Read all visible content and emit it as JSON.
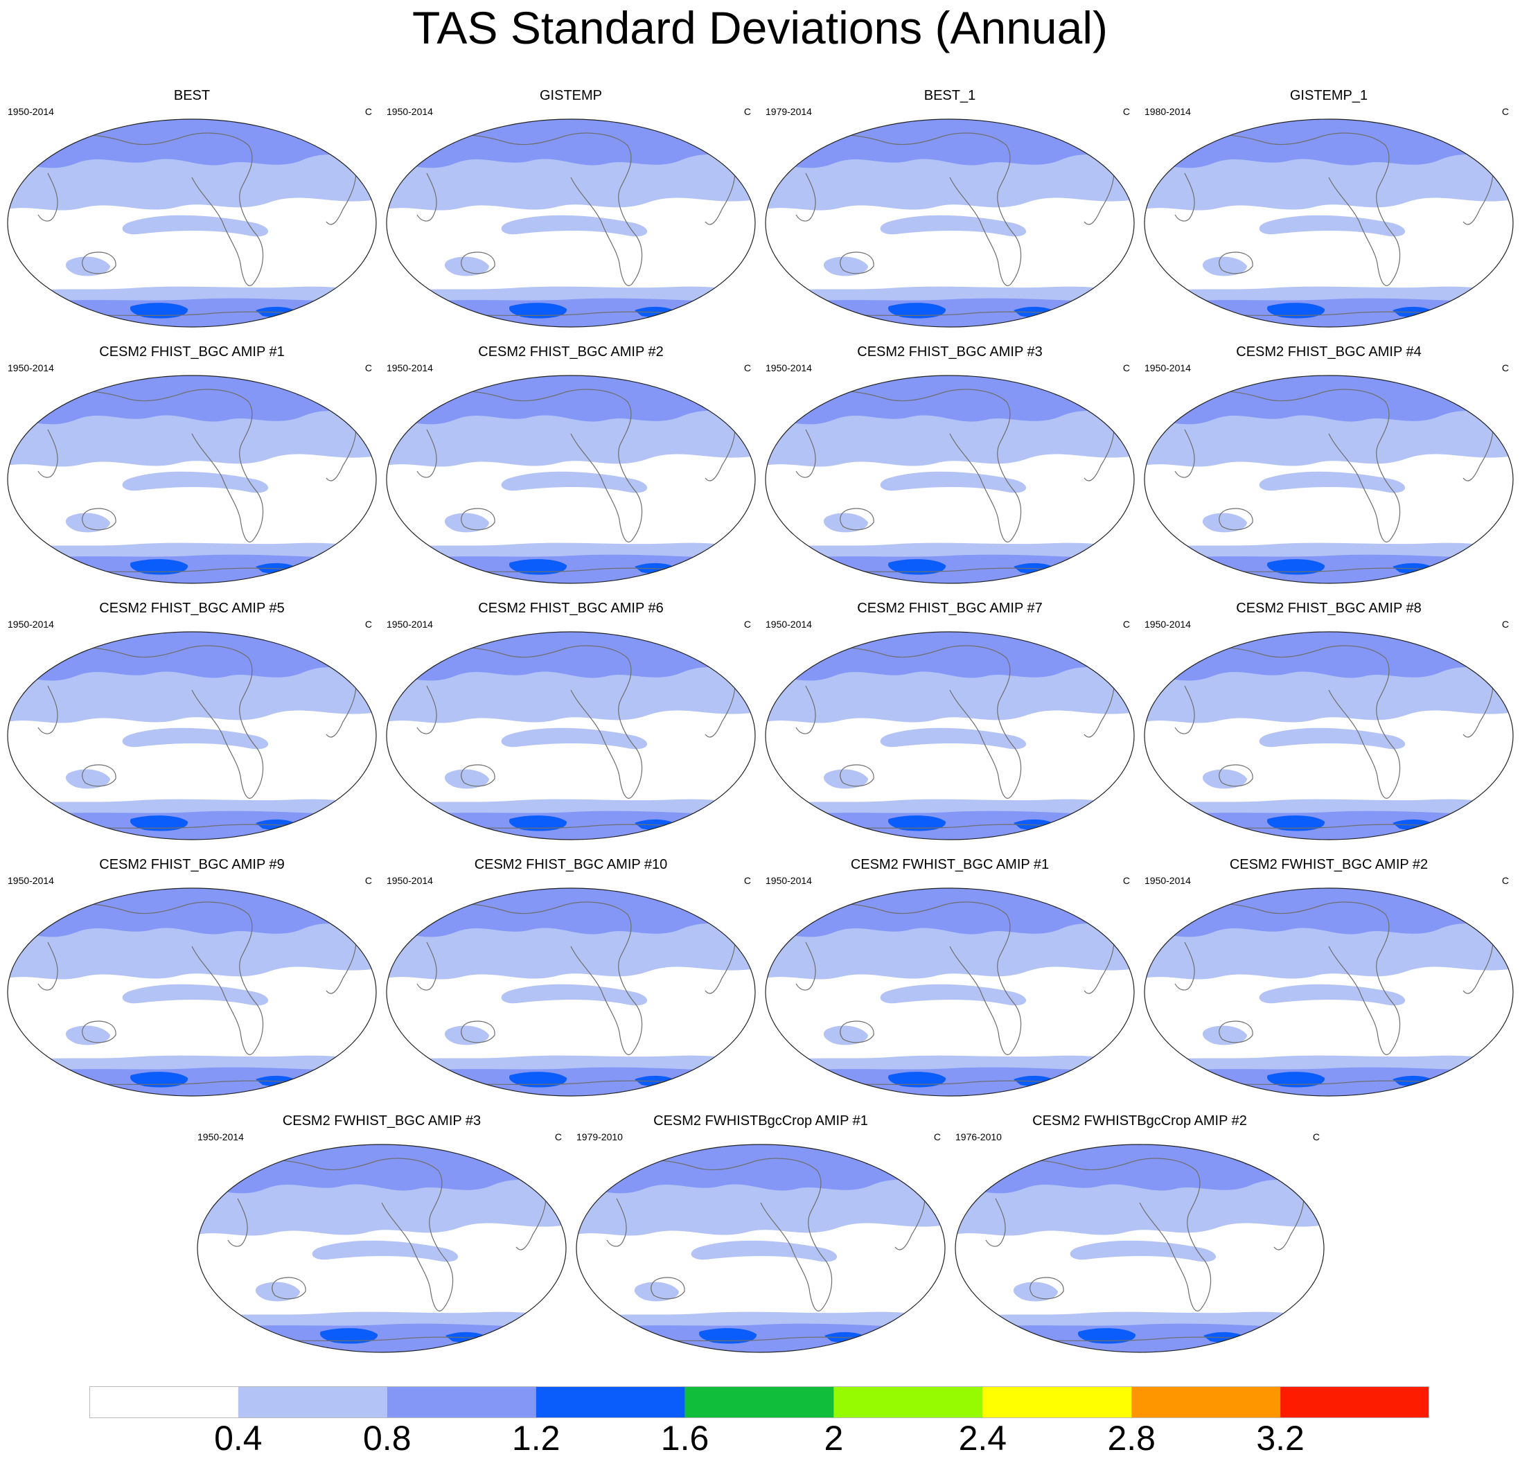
{
  "title": "TAS Standard Deviations (Annual)",
  "panels": [
    {
      "title": "BEST",
      "period": "1950-2014",
      "units": "C"
    },
    {
      "title": "GISTEMP",
      "period": "1950-2014",
      "units": "C"
    },
    {
      "title": "BEST_1",
      "period": "1979-2014",
      "units": "C"
    },
    {
      "title": "GISTEMP_1",
      "period": "1980-2014",
      "units": "C"
    },
    {
      "title": "CESM2 FHIST_BGC AMIP #1",
      "period": "1950-2014",
      "units": "C"
    },
    {
      "title": "CESM2 FHIST_BGC AMIP #2",
      "period": "1950-2014",
      "units": "C"
    },
    {
      "title": "CESM2 FHIST_BGC AMIP #3",
      "period": "1950-2014",
      "units": "C"
    },
    {
      "title": "CESM2 FHIST_BGC AMIP #4",
      "period": "1950-2014",
      "units": "C"
    },
    {
      "title": "CESM2 FHIST_BGC AMIP #5",
      "period": "1950-2014",
      "units": "C"
    },
    {
      "title": "CESM2 FHIST_BGC AMIP #6",
      "period": "1950-2014",
      "units": "C"
    },
    {
      "title": "CESM2 FHIST_BGC AMIP #7",
      "period": "1950-2014",
      "units": "C"
    },
    {
      "title": "CESM2 FHIST_BGC AMIP #8",
      "period": "1950-2014",
      "units": "C"
    },
    {
      "title": "CESM2 FHIST_BGC AMIP #9",
      "period": "1950-2014",
      "units": "C"
    },
    {
      "title": "CESM2 FHIST_BGC AMIP #10",
      "period": "1950-2014",
      "units": "C"
    },
    {
      "title": "CESM2 FWHIST_BGC AMIP #1",
      "period": "1950-2014",
      "units": "C"
    },
    {
      "title": "CESM2 FWHIST_BGC AMIP #2",
      "period": "1950-2014",
      "units": "C"
    },
    {
      "title": "CESM2 FWHIST_BGC AMIP #3",
      "period": "1950-2014",
      "units": "C"
    },
    {
      "title": "CESM2 FWHISTBgcCrop AMIP #1",
      "period": "1979-2010",
      "units": "C"
    },
    {
      "title": "CESM2 FWHISTBgcCrop AMIP #2",
      "period": "1976-2010",
      "units": "C"
    }
  ],
  "colorbar": {
    "labels": [
      "0.4",
      "0.8",
      "1.2",
      "1.6",
      "2",
      "2.4",
      "2.8",
      "3.2"
    ],
    "colors": [
      "#ffffff",
      "#b4c3f5",
      "#8497f7",
      "#0a5dfb",
      "#10be3c",
      "#96fa00",
      "#ffff00",
      "#fe9600",
      "#fe1c00"
    ]
  }
}
